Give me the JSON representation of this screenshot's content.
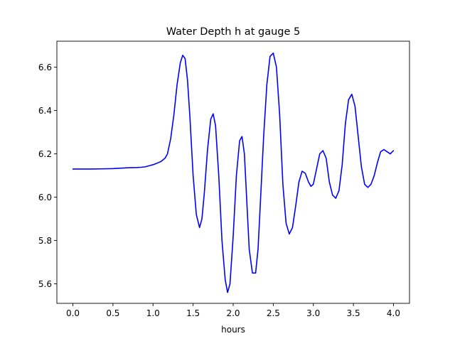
{
  "chart_data": {
    "type": "line",
    "title": "Water Depth h at gauge 5",
    "xlabel": "hours",
    "ylabel": "",
    "xlim": [
      -0.2,
      4.2
    ],
    "ylim": [
      5.51,
      6.72
    ],
    "xticks": [
      0.0,
      0.5,
      1.0,
      1.5,
      2.0,
      2.5,
      3.0,
      3.5,
      4.0
    ],
    "xtick_labels": [
      "0.0",
      "0.5",
      "1.0",
      "1.5",
      "2.0",
      "2.5",
      "3.0",
      "3.5",
      "4.0"
    ],
    "yticks": [
      5.6,
      5.8,
      6.0,
      6.2,
      6.4,
      6.6
    ],
    "ytick_labels": [
      "5.6",
      "5.8",
      "6.0",
      "6.2",
      "6.4",
      "6.6"
    ],
    "grid": false,
    "legend": "none",
    "series": [
      {
        "color": "#0000ff",
        "x": [
          0.0,
          0.2,
          0.4,
          0.5,
          0.6,
          0.7,
          0.8,
          0.85,
          0.9,
          0.95,
          1.0,
          1.05,
          1.1,
          1.15,
          1.18,
          1.22,
          1.26,
          1.3,
          1.34,
          1.37,
          1.4,
          1.43,
          1.46,
          1.5,
          1.54,
          1.58,
          1.61,
          1.64,
          1.68,
          1.72,
          1.75,
          1.78,
          1.82,
          1.86,
          1.9,
          1.93,
          1.96,
          2.0,
          2.04,
          2.08,
          2.11,
          2.14,
          2.17,
          2.2,
          2.24,
          2.28,
          2.31,
          2.34,
          2.38,
          2.42,
          2.46,
          2.5,
          2.54,
          2.58,
          2.62,
          2.66,
          2.7,
          2.74,
          2.78,
          2.82,
          2.86,
          2.9,
          2.94,
          2.97,
          3.0,
          3.04,
          3.08,
          3.12,
          3.16,
          3.2,
          3.24,
          3.28,
          3.32,
          3.36,
          3.4,
          3.44,
          3.48,
          3.52,
          3.56,
          3.6,
          3.64,
          3.68,
          3.72,
          3.76,
          3.8,
          3.84,
          3.88,
          3.92,
          3.96,
          4.0
        ],
        "y": [
          6.13,
          6.13,
          6.131,
          6.132,
          6.134,
          6.136,
          6.137,
          6.138,
          6.14,
          6.145,
          6.15,
          6.157,
          6.165,
          6.18,
          6.2,
          6.27,
          6.38,
          6.52,
          6.62,
          6.655,
          6.64,
          6.54,
          6.37,
          6.1,
          5.92,
          5.86,
          5.9,
          6.02,
          6.22,
          6.36,
          6.385,
          6.33,
          6.1,
          5.8,
          5.62,
          5.56,
          5.6,
          5.82,
          6.1,
          6.26,
          6.28,
          6.2,
          5.98,
          5.76,
          5.65,
          5.65,
          5.76,
          5.98,
          6.28,
          6.52,
          6.65,
          6.665,
          6.6,
          6.38,
          6.06,
          5.88,
          5.83,
          5.86,
          5.96,
          6.07,
          6.12,
          6.11,
          6.07,
          6.05,
          6.06,
          6.13,
          6.2,
          6.215,
          6.18,
          6.07,
          6.01,
          5.995,
          6.03,
          6.15,
          6.34,
          6.45,
          6.475,
          6.42,
          6.28,
          6.14,
          6.06,
          6.045,
          6.06,
          6.1,
          6.16,
          6.21,
          6.22,
          6.21,
          6.2,
          6.215
        ]
      }
    ]
  }
}
